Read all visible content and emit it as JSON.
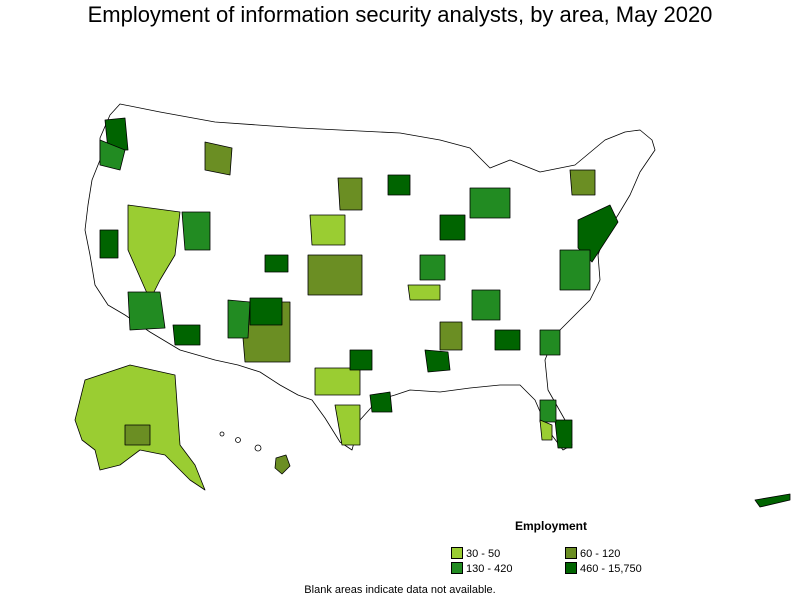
{
  "title": "Employment of information security analysts, by area, May 2020",
  "legend": {
    "title": "Employment",
    "items": [
      {
        "label": "30 - 50",
        "color": "#9acd32"
      },
      {
        "label": "60 - 120",
        "color": "#6b8e23"
      },
      {
        "label": "130 - 420",
        "color": "#228b22"
      },
      {
        "label": "460 - 15,750",
        "color": "#006400"
      }
    ]
  },
  "footnote": "Blank areas indicate data not available.",
  "colors": {
    "outline": "#000000",
    "no_data": "#ffffff"
  }
}
